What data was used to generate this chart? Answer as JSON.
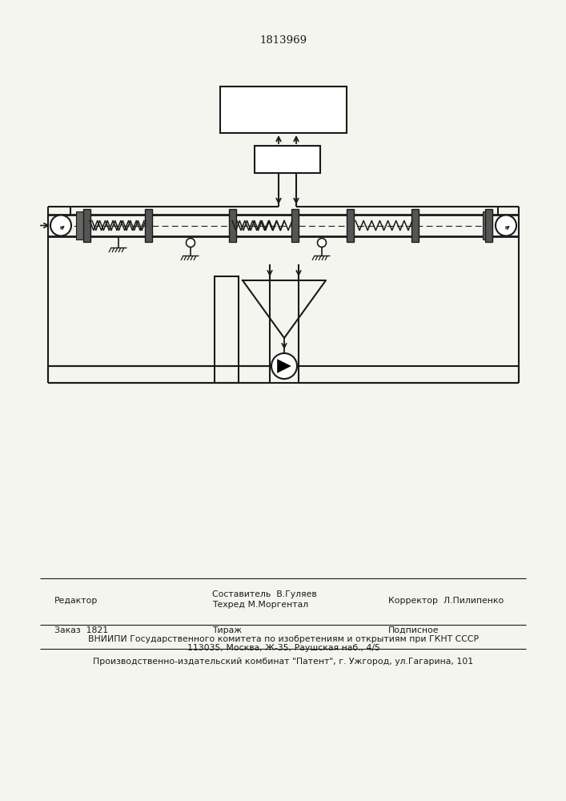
{
  "title": "1813969",
  "bg_color": "#f5f5f0",
  "line_color": "#1a1a1a",
  "footer_col1_row1": "Редактор",
  "footer_col2_row1a": "Составитель  В.Гуляев",
  "footer_col2_row1b": "Техред М.Моргентал",
  "footer_col3_row1": "Корректор  Л.Пилипенко",
  "footer_col1_row2": "Заказ  1821",
  "footer_col2_row2": "Тираж",
  "footer_col3_row2": "Подписное",
  "footer_row3": "ВНИИПИ Государственного комитета по изобретениям и открытиям при ГКНТ СССР",
  "footer_row4": "113035, Москва, Ж-35, Раушская наб., 4/5",
  "footer_row5": "Производственно-издательский комбинат \"Патент\", г. Ужгород, ул.Гагарина, 101"
}
